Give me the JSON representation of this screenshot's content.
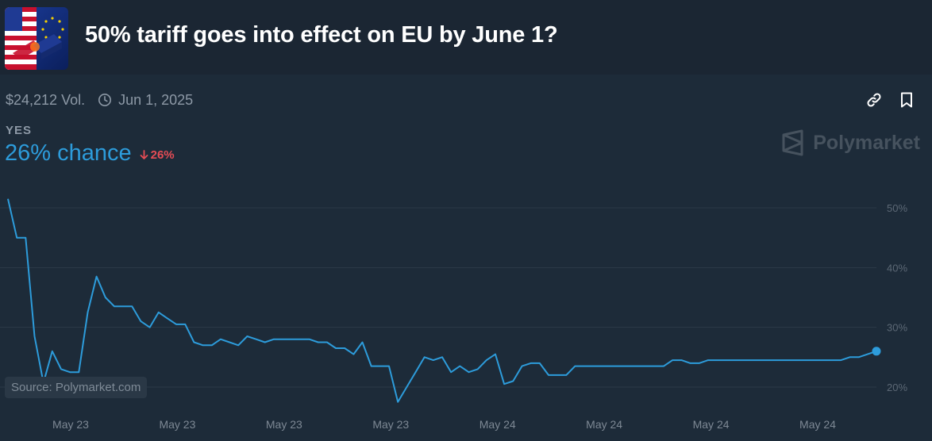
{
  "market": {
    "title": "50% tariff goes into effect on EU by June 1?",
    "volume": "$24,212 Vol.",
    "end_date": "Jun 1, 2025",
    "outcome": "YES",
    "chance_text": "26% chance",
    "change_text": "26%",
    "brand": "Polymarket",
    "source": "Source: Polymarket.com"
  },
  "icons": {
    "link": "link-icon",
    "bookmark": "bookmark-icon",
    "clock": "clock-icon",
    "arrow": "arrow-down-icon",
    "logo": "polymarket-logo-icon"
  },
  "colors": {
    "background": "#1d2b39",
    "line": "#2d9cdb",
    "down": "#e64c55",
    "grid": "#2c3a48"
  },
  "chart_data": {
    "type": "line",
    "title": "",
    "xlabel": "",
    "ylabel": "",
    "ylim": [
      18,
      52
    ],
    "y_ticks": [
      20,
      30,
      40,
      50
    ],
    "y_tick_labels": [
      "20%",
      "30%",
      "40%",
      "50%"
    ],
    "x_tick_labels": [
      "May 23",
      "May 23",
      "May 23",
      "May 23",
      "May 24",
      "May 24",
      "May 24",
      "May 24"
    ],
    "grid": true,
    "series": [
      {
        "values": [
          51.5,
          45,
          45,
          28.5,
          20.7,
          26,
          23,
          22.5,
          22.5,
          32.5,
          38.5,
          35,
          33.5,
          33.5,
          33.5,
          31,
          30,
          32.5,
          31.5,
          30.5,
          30.5,
          27.5,
          27,
          27,
          28,
          27.5,
          27,
          28.5,
          28,
          27.5,
          28,
          28,
          28,
          28,
          28,
          27.5,
          27.5,
          26.5,
          26.5,
          25.5,
          27.5,
          23.5,
          23.5,
          23.5,
          17.5,
          20,
          22.5,
          25,
          24.5,
          25,
          22.5,
          23.5,
          22.5,
          23,
          24.5,
          25.5,
          20.5,
          21,
          23.5,
          24,
          24,
          22,
          22,
          22,
          23.5,
          23.5,
          23.5,
          23.5,
          23.5,
          23.5,
          23.5,
          23.5,
          23.5,
          23.5,
          23.5,
          24.5,
          24.5,
          24,
          24,
          24.5,
          24.5,
          24.5,
          24.5,
          24.5,
          24.5,
          24.5,
          24.5,
          24.5,
          24.5,
          24.5,
          24.5,
          24.5,
          24.5,
          24.5,
          24.5,
          25,
          25,
          25.5,
          26
        ]
      }
    ]
  }
}
